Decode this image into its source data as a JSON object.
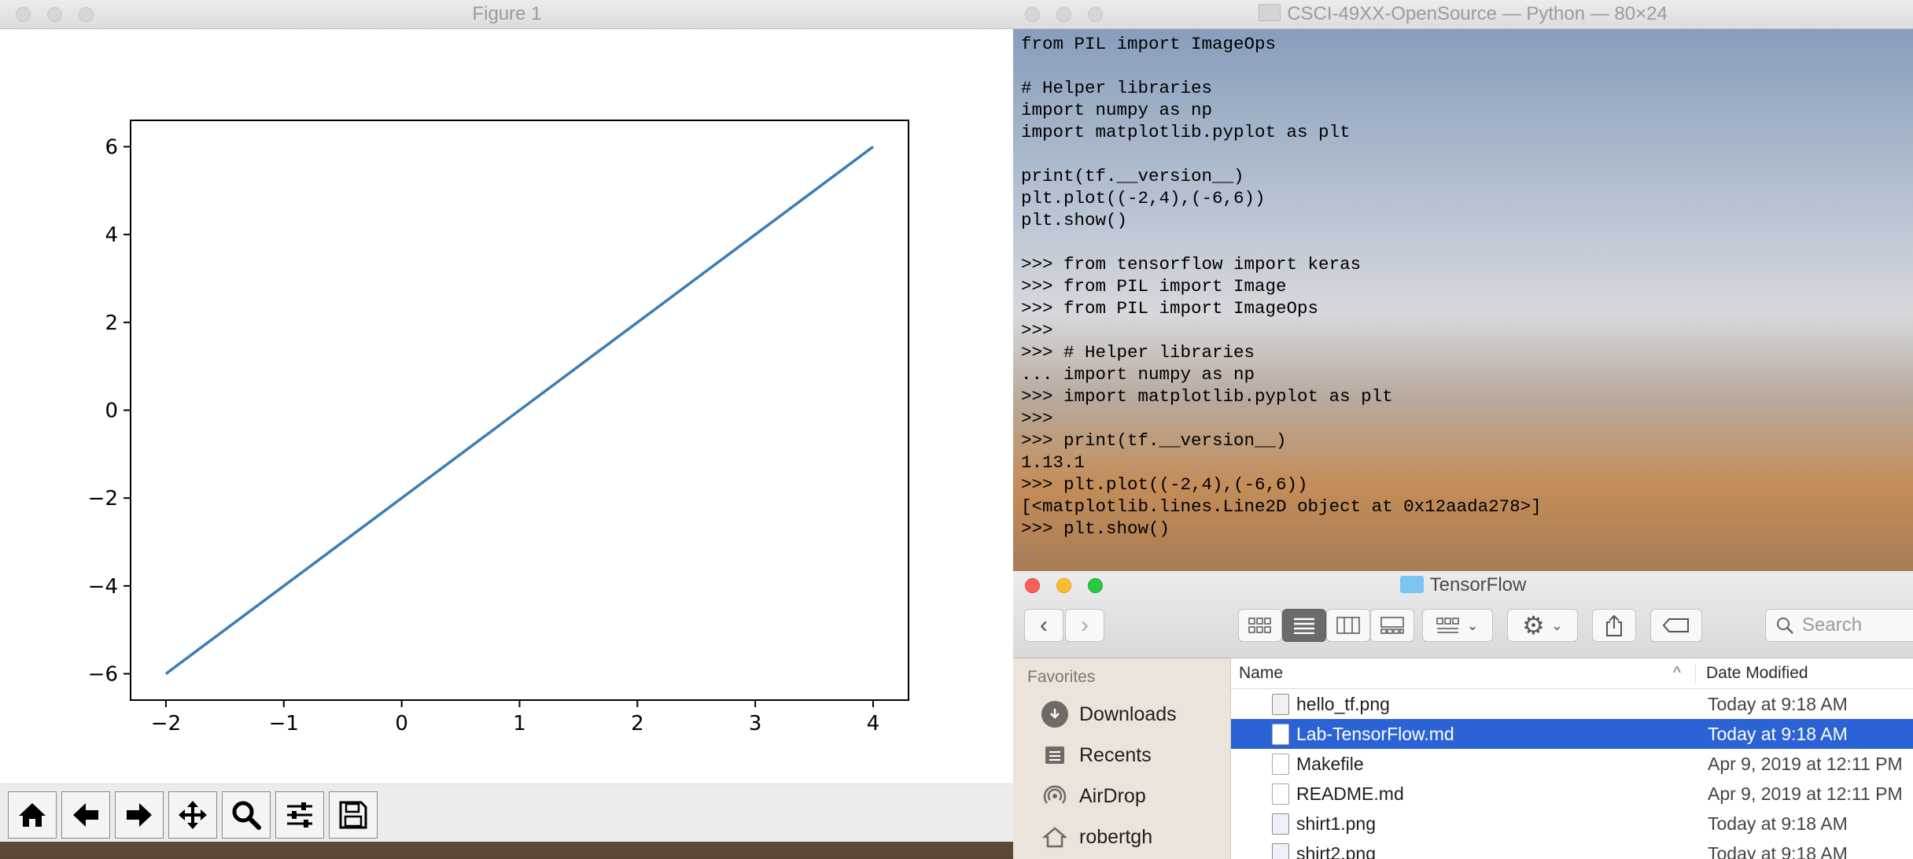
{
  "figure_window": {
    "title": "Figure 1",
    "toolbar": [
      "home-icon",
      "back-arrow-icon",
      "forward-arrow-icon",
      "pan-move-icon",
      "zoom-magnifier-icon",
      "configure-subplots-icon",
      "save-floppy-icon"
    ]
  },
  "chart_data": {
    "type": "line",
    "x": [
      -2,
      4
    ],
    "y": [
      -6,
      6
    ],
    "xlim": [
      -2.3,
      4.3
    ],
    "ylim": [
      -6.6,
      6.6
    ],
    "xticks": [
      "−2",
      "−1",
      "0",
      "1",
      "2",
      "3",
      "4"
    ],
    "yticks": [
      "−6",
      "−4",
      "−2",
      "0",
      "2",
      "4",
      "6"
    ],
    "xtick_values": [
      -2,
      -1,
      0,
      1,
      2,
      3,
      4
    ],
    "ytick_values": [
      -6,
      -4,
      -2,
      0,
      2,
      4,
      6
    ],
    "color": "#3b7db6",
    "grid": false
  },
  "terminal": {
    "title": "CSCI-49XX-OpenSource — Python — 80×24",
    "lines": "from PIL import ImageOps\n\n# Helper libraries\nimport numpy as np\nimport matplotlib.pyplot as plt\n\nprint(tf.__version__)\nplt.plot((-2,4),(-6,6))\nplt.show()\n\n>>> from tensorflow import keras\n>>> from PIL import Image\n>>> from PIL import ImageOps\n>>>\n>>> # Helper libraries\n... import numpy as np\n>>> import matplotlib.pyplot as plt\n>>>\n>>> print(tf.__version__)\n1.13.1\n>>> plt.plot((-2,4),(-6,6))\n[<matplotlib.lines.Line2D object at 0x12aada278>]\n>>> plt.show()"
  },
  "finder": {
    "title": "TensorFlow",
    "search_placeholder": "Search",
    "sidebar_heading": "Favorites",
    "sidebar_items": [
      {
        "label": "Downloads",
        "icon": "downloads-icon"
      },
      {
        "label": "Recents",
        "icon": "recents-icon"
      },
      {
        "label": "AirDrop",
        "icon": "airdrop-icon"
      },
      {
        "label": "robertgh",
        "icon": "home-folder-icon"
      }
    ],
    "columns": {
      "name": "Name",
      "date": "Date Modified"
    },
    "files": [
      {
        "name": "hello_tf.png",
        "date": "Today at 9:18 AM"
      },
      {
        "name": "Lab-TensorFlow.md",
        "date": "Today at 9:18 AM"
      },
      {
        "name": "Makefile",
        "date": "Apr 9, 2019 at 12:11 PM"
      },
      {
        "name": "README.md",
        "date": "Apr 9, 2019 at 12:11 PM"
      },
      {
        "name": "shirt1.png",
        "date": "Today at 9:18 AM"
      },
      {
        "name": "shirt2.png",
        "date": "Today at 9:18 AM"
      }
    ],
    "selected_index": 1,
    "colors": {
      "selection": "#2b63d6",
      "close": "#fc5f57",
      "minimize": "#fdbc2e",
      "zoom": "#28c840"
    }
  }
}
